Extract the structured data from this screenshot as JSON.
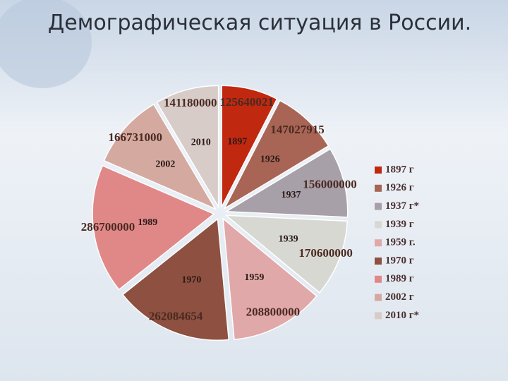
{
  "chart_data": {
    "type": "pie",
    "title": "Демографическая ситуация в России.",
    "categories": [
      "1897 г",
      "1926 г",
      "1937 г*",
      "1939 г",
      "1959 г.",
      "1970 г",
      "1989 г",
      "2002 г",
      "2010 г*"
    ],
    "slice_labels": [
      "1897",
      "1926",
      "1937",
      "1939",
      "1959",
      "1970",
      "1989",
      "2002",
      "2010"
    ],
    "values": [
      125640021,
      147027915,
      156000000,
      170600000,
      208800000,
      262084654,
      286700000,
      166731000,
      141180000
    ],
    "colors": [
      "#c0280f",
      "#a86555",
      "#a8a0a8",
      "#d8d8d2",
      "#e0a8a8",
      "#8e5040",
      "#e08888",
      "#d4aaa0",
      "#d8ccc8"
    ],
    "legend": "right"
  }
}
